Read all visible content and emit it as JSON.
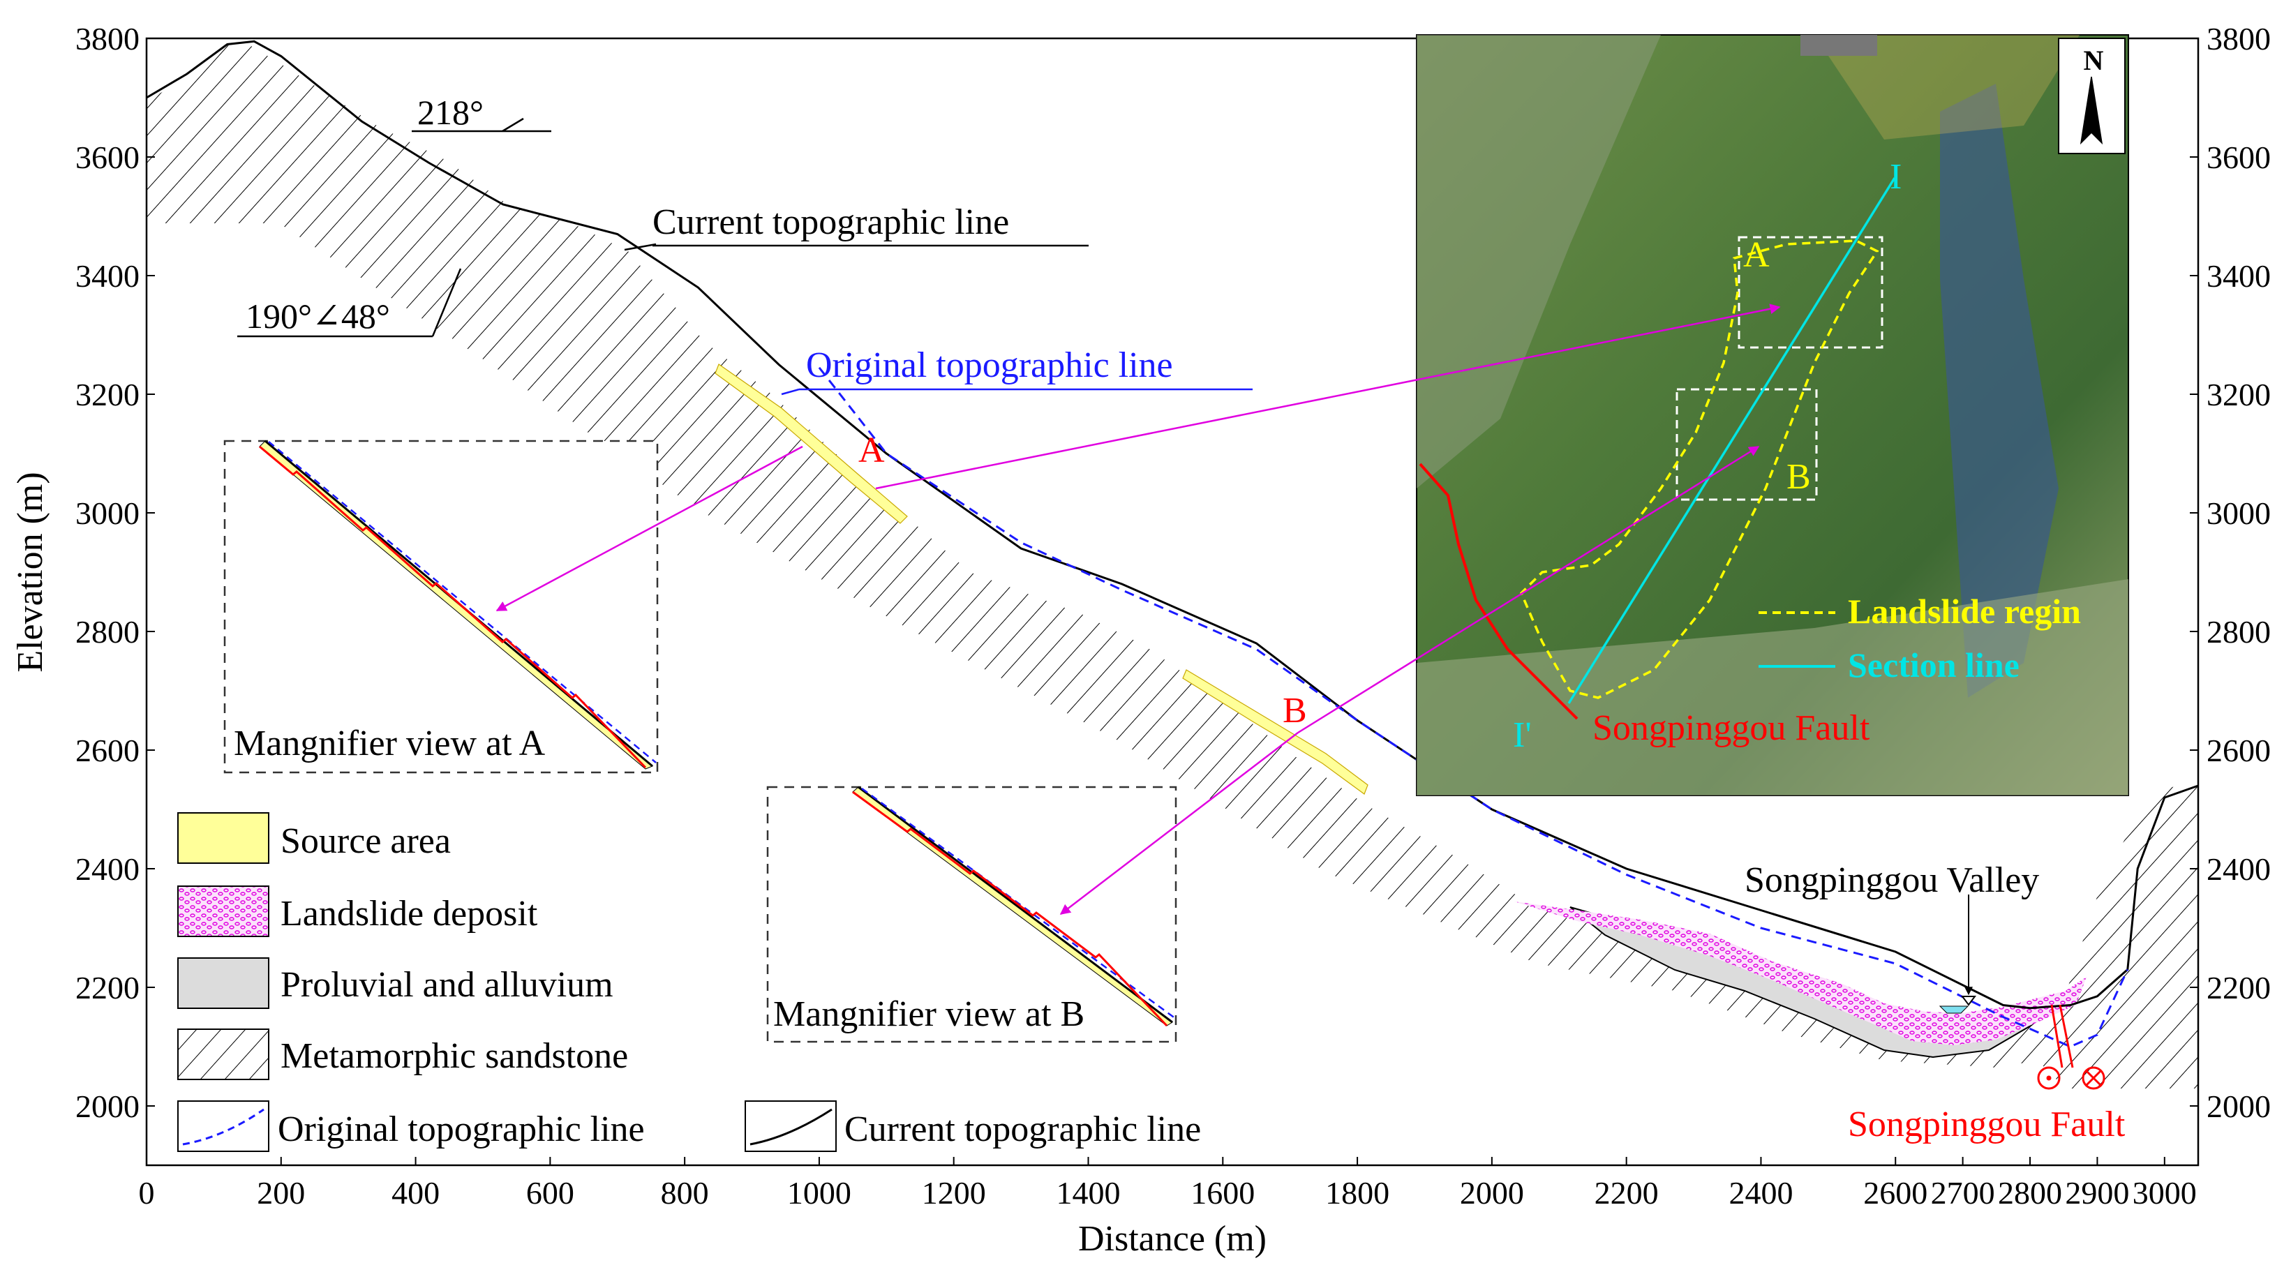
{
  "axes": {
    "xlabel": "Distance (m)",
    "ylabel": "Elevation (m)",
    "xlim": [
      0,
      3050
    ],
    "ylim": [
      1900,
      3800
    ],
    "x_ticks": [
      "0",
      "200",
      "400",
      "600",
      "800",
      "1000",
      "1200",
      "1400",
      "1600",
      "1800",
      "2000",
      "2200",
      "2400",
      "2600",
      "2700",
      "2800",
      "2900",
      "3000"
    ],
    "y_ticks": [
      "3800",
      "3600",
      "3400",
      "3200",
      "3000",
      "2800",
      "2600",
      "2400",
      "2200",
      "2000"
    ]
  },
  "annotations": {
    "strike": "218°",
    "dip": "190°∠48°",
    "current_line": "Current topographic line",
    "original_line": "Original topographic line",
    "point_a": "A",
    "point_b": "B",
    "valley": "Songpinggou Valley",
    "fault": "Songpinggou Fault"
  },
  "magnifiers": {
    "a_label": "Mangnifier view at A",
    "b_label": "Mangnifier view at B"
  },
  "legend": {
    "source_area": "Source area",
    "landslide_deposit": "Landslide deposit",
    "proluvial": "Proluvial and alluvium",
    "metamorphic": "Metamorphic sandstone",
    "original_line": "Original topographic line",
    "current_line": "Current topographic line"
  },
  "map_inset": {
    "north": "N",
    "section_start": "I",
    "section_end": "I'",
    "label_a": "A",
    "label_b": "B",
    "legend_landslide": "Landslide regin",
    "legend_section": "Section line",
    "fault": "Songpinggou Fault"
  },
  "colors": {
    "source_area": "#ffff99",
    "deposit": "#f4a6f4",
    "proluvial": "#dcdcdc",
    "original_line": "#1a1aff",
    "fault_red": "#ff0000",
    "arrow_magenta": "#e000e0",
    "section_cyan": "#00e5e5",
    "landslide_yellow": "#ffff00"
  },
  "chart_data": {
    "type": "line",
    "x_unit": "m",
    "y_unit": "m",
    "series": [
      {
        "name": "Current topographic line",
        "x": [
          0,
          60,
          120,
          160,
          200,
          320,
          420,
          530,
          700,
          820,
          940,
          1100,
          1300,
          1450,
          1650,
          1800,
          2000,
          2200,
          2400,
          2600,
          2760,
          2800,
          2860,
          2900,
          2945,
          2960,
          3000,
          3050
        ],
        "y": [
          3700,
          3740,
          3790,
          3795,
          3770,
          3660,
          3590,
          3520,
          3470,
          3380,
          3250,
          3100,
          2940,
          2880,
          2780,
          2650,
          2500,
          2400,
          2330,
          2260,
          2170,
          2165,
          2170,
          2185,
          2230,
          2400,
          2520,
          2540
        ]
      },
      {
        "name": "Original topographic line",
        "x": [
          1000,
          1100,
          1300,
          1450,
          1650,
          1800,
          2000,
          2200,
          2400,
          2600,
          2760,
          2860,
          2900,
          2945
        ],
        "y": [
          3245,
          3100,
          2950,
          2870,
          2770,
          2650,
          2500,
          2390,
          2300,
          2240,
          2150,
          2100,
          2120,
          2230
        ]
      }
    ]
  }
}
